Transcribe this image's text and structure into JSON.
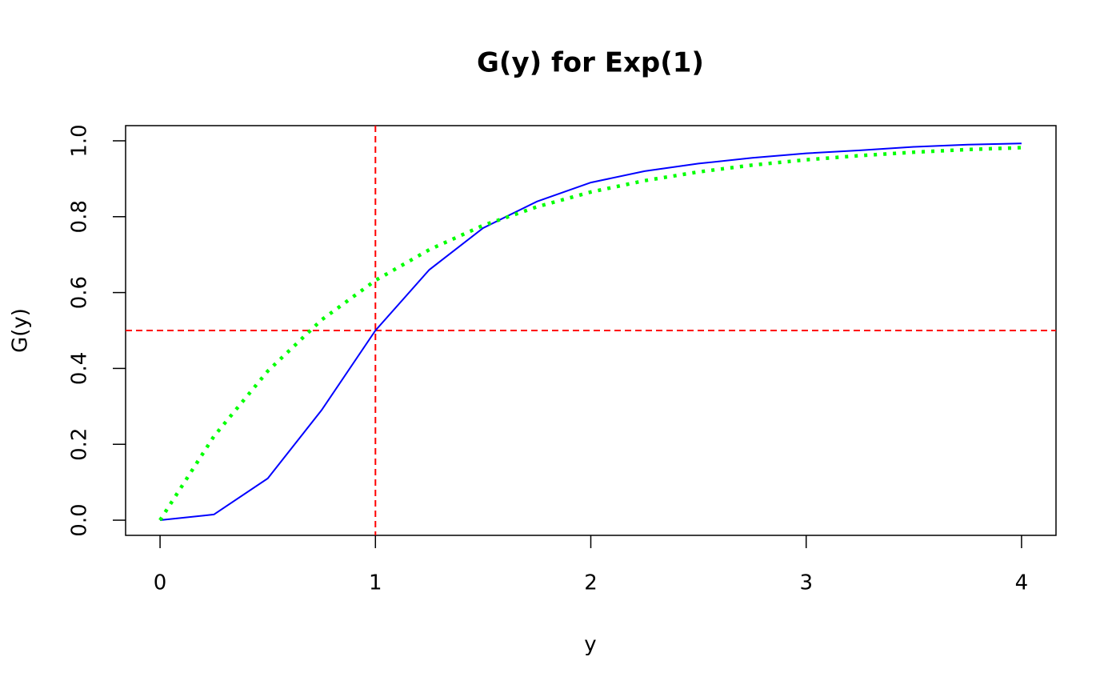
{
  "chart_data": {
    "type": "line",
    "title": "G(y) for Exp(1)",
    "x_label": "y",
    "y_label": "G(y)",
    "x": [
      0,
      0.25,
      0.5,
      0.75,
      1,
      1.25,
      1.5,
      1.75,
      2,
      2.25,
      2.5,
      2.75,
      3,
      3.25,
      3.5,
      3.75,
      4
    ],
    "series": [
      {
        "color": "#0000ff",
        "dash": "solid",
        "values": [
          0,
          0.015,
          0.11,
          0.29,
          0.5,
          0.66,
          0.77,
          0.84,
          0.89,
          0.92,
          0.94,
          0.955,
          0.967,
          0.975,
          0.984,
          0.99,
          0.993
        ]
      },
      {
        "color": "#00ff00",
        "dash": "dotted",
        "values": [
          0,
          0.221,
          0.393,
          0.528,
          0.632,
          0.713,
          0.777,
          0.826,
          0.865,
          0.895,
          0.918,
          0.936,
          0.95,
          0.961,
          0.97,
          0.977,
          0.982
        ]
      }
    ],
    "reference_lines": [
      {
        "axis": "x",
        "value": 1,
        "color": "#ff0000"
      },
      {
        "axis": "y",
        "value": 0.5,
        "color": "#ff0000"
      }
    ],
    "xlim": [
      -0.16,
      4.16
    ],
    "ylim": [
      -0.04,
      1.04
    ],
    "xticks": [
      0,
      1,
      2,
      3,
      4
    ],
    "yticks": [
      {
        "value": 0,
        "label": "0.0"
      },
      {
        "value": 0.2,
        "label": "0.2"
      },
      {
        "value": 0.4,
        "label": "0.4"
      },
      {
        "value": 0.6,
        "label": "0.6"
      },
      {
        "value": 0.8,
        "label": "0.8"
      },
      {
        "value": 1,
        "label": "1.0"
      }
    ],
    "grid": false
  }
}
